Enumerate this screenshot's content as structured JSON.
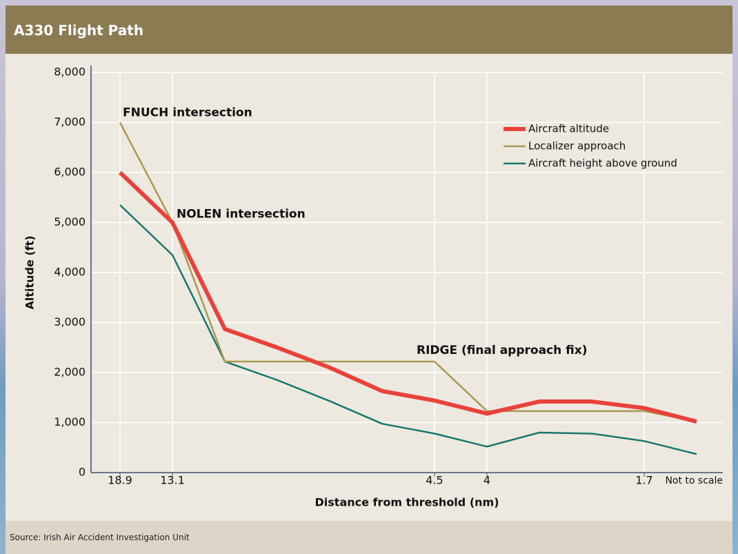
{
  "chart_data": {
    "type": "line",
    "title": "A330 Flight Path",
    "xlabel": "Distance from threshold (nm)",
    "ylabel": "Altitude (ft)",
    "source": "Source: Irish Air Accident Investigation Unit",
    "x_note": "Not to scale",
    "categories": [
      "18.9",
      "13.1",
      null,
      null,
      null,
      null,
      "4.5",
      "4",
      null,
      null,
      "1.7",
      null
    ],
    "ylim": [
      0,
      8000
    ],
    "yticks": [
      0,
      {
        "value": 1000,
        "label": "1,000"
      },
      {
        "value": 2000,
        "label": "2,000"
      },
      {
        "value": 3000,
        "label": "3,000"
      },
      {
        "value": 4000,
        "label": "4,000"
      },
      {
        "value": 5000,
        "label": "5,000"
      },
      {
        "value": 6000,
        "label": "6,000"
      },
      {
        "value": 7000,
        "label": "7,000"
      },
      {
        "value": 8000,
        "label": "8,000"
      }
    ],
    "grid": true,
    "legend": "upper right",
    "series": [
      {
        "name": "Aircraft altitude",
        "color": "#e8433a",
        "values": [
          6000,
          5000,
          2870,
          2500,
          2100,
          1630,
          1440,
          1180,
          1420,
          1420,
          1290,
          1020
        ]
      },
      {
        "name": "Localizer approach",
        "color": "#a89a55",
        "values": [
          7000,
          5000,
          2220,
          2220,
          2220,
          2220,
          2220,
          1230,
          1230,
          1230,
          1230,
          1020
        ]
      },
      {
        "name": "Aircraft height above ground",
        "color": "#16786a",
        "values": [
          5350,
          4350,
          2220,
          1850,
          1430,
          977,
          780,
          520,
          800,
          780,
          630,
          370
        ]
      }
    ],
    "annotations": [
      {
        "text": "FNUCH intersection",
        "index": 0,
        "value": 7000
      },
      {
        "text": "NOLEN intersection",
        "index": 1,
        "value": 5000
      },
      {
        "text": "RIDGE (final approach fix)",
        "index": 6,
        "value": 2220
      }
    ]
  }
}
